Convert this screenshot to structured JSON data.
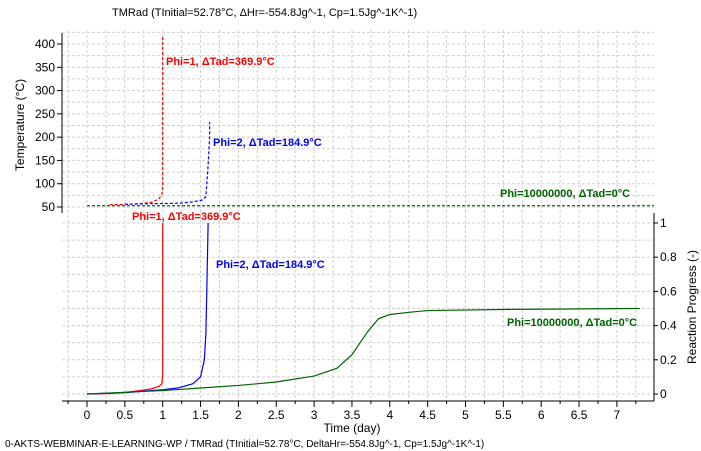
{
  "title": "TMRad (TInitial=52.78°C, ΔHr=-554.8Jg^-1, Cp=1.5Jg^-1K^-1)",
  "footer": "0-AKTS-WEBMINAR-E-LEARNING-WP / TMRad (TInitial=52.78°C, DeltaHr=-554.8Jg^-1, Cp=1.5Jg^-1K^-1)",
  "chart_data": [
    {
      "type": "line",
      "panel": "temperature",
      "ylabel": "Temperature (°C)",
      "ylim": [
        50,
        420
      ],
      "yticks": [
        50,
        100,
        150,
        200,
        250,
        300,
        350,
        400
      ],
      "xlim": [
        -0.3,
        7.3
      ],
      "grid": true,
      "series": [
        {
          "name": "Phi=1, ΔTad=369.9°C",
          "color": "#ff0000",
          "style": "dashed",
          "x": [
            0.3,
            0.5,
            0.7,
            0.85,
            0.95,
            0.99,
            1.0,
            1.0
          ],
          "y": [
            55,
            55.5,
            57,
            60,
            67,
            78,
            90,
            420
          ]
        },
        {
          "name": "Phi=2, ΔTad=184.9°C",
          "color": "#0000ff",
          "style": "dashed",
          "x": [
            0.5,
            0.8,
            1.2,
            1.4,
            1.52,
            1.57,
            1.6,
            1.62,
            1.62
          ],
          "y": [
            56,
            57,
            58,
            61,
            65,
            72,
            140,
            200,
            232
          ]
        },
        {
          "name": "Phi=10000000, ΔTad=0°C",
          "color": "#006400",
          "style": "dashed",
          "x": [
            0,
            7.3
          ],
          "y": [
            52.78,
            52.78
          ]
        }
      ]
    },
    {
      "type": "line",
      "panel": "progress",
      "xlabel": "Time (day)",
      "ylabel": "Reaction Progress (-)",
      "xlim": [
        -0.3,
        7.3
      ],
      "xticks": [
        0,
        0.5,
        1,
        1.5,
        2,
        2.5,
        3,
        3.5,
        4,
        4.5,
        5,
        5.5,
        6,
        6.5,
        7
      ],
      "ylim": [
        -0.05,
        1.05
      ],
      "yticks": [
        0,
        0.2,
        0.4,
        0.6,
        0.8,
        1
      ],
      "grid": true,
      "series": [
        {
          "name": "Phi=1, ΔTad=369.9°C",
          "color": "#ff0000",
          "x": [
            0,
            0.3,
            0.5,
            0.7,
            0.85,
            0.95,
            0.99,
            1.0,
            1.0
          ],
          "y": [
            0,
            0.003,
            0.01,
            0.02,
            0.03,
            0.045,
            0.06,
            0.12,
            1
          ]
        },
        {
          "name": "Phi=2, ΔTad=184.9°C",
          "color": "#0000ff",
          "x": [
            0,
            0.5,
            1.0,
            1.2,
            1.4,
            1.5,
            1.55,
            1.57,
            1.58,
            1.6
          ],
          "y": [
            0,
            0.008,
            0.025,
            0.035,
            0.06,
            0.1,
            0.2,
            0.35,
            0.55,
            1
          ]
        },
        {
          "name": "Phi=10000000, ΔTad=0°C",
          "color": "#006400",
          "x": [
            0,
            0.5,
            1,
            1.5,
            2,
            2.5,
            3,
            3.3,
            3.5,
            3.7,
            3.85,
            4.0,
            4.3,
            4.5,
            5.6,
            7.3
          ],
          "y": [
            0,
            0.01,
            0.02,
            0.035,
            0.05,
            0.07,
            0.105,
            0.15,
            0.23,
            0.36,
            0.44,
            0.465,
            0.48,
            0.488,
            0.495,
            0.5
          ]
        }
      ]
    }
  ]
}
